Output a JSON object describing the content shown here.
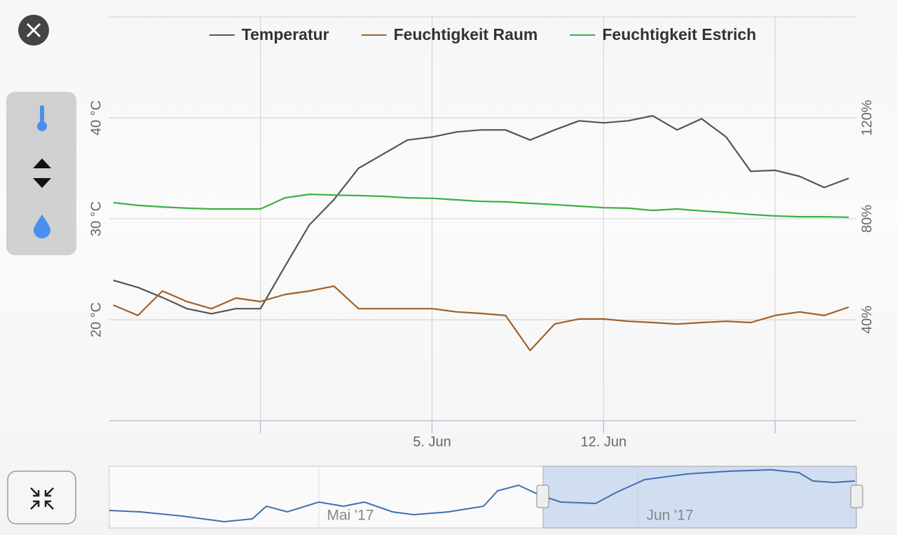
{
  "chart_data": {
    "type": "line",
    "x": [
      "2017-05-23",
      "2017-05-24",
      "2017-05-25",
      "2017-05-26",
      "2017-05-27",
      "2017-05-28",
      "2017-05-29",
      "2017-05-30",
      "2017-05-31",
      "2017-06-01",
      "2017-06-02",
      "2017-06-03",
      "2017-06-04",
      "2017-06-05",
      "2017-06-06",
      "2017-06-07",
      "2017-06-08",
      "2017-06-09",
      "2017-06-10",
      "2017-06-11",
      "2017-06-12",
      "2017-06-13",
      "2017-06-14",
      "2017-06-15",
      "2017-06-16",
      "2017-06-17",
      "2017-06-18",
      "2017-06-19",
      "2017-06-20",
      "2017-06-21",
      "2017-06-22"
    ],
    "xlim": [
      "2017-05-22T20:00",
      "2017-06-22T07:30"
    ],
    "xticks": [
      {
        "value": "2017-05-29",
        "label": null
      },
      {
        "value": "2017-06-05",
        "label": "5. Jun"
      },
      {
        "value": "2017-06-12",
        "label": "12. Jun"
      },
      {
        "value": "2017-06-19",
        "label": null
      }
    ],
    "ylim": [
      10,
      50
    ],
    "yticks": [
      {
        "value": 20,
        "label": "20 °C"
      },
      {
        "value": 30,
        "label": "30 °C"
      },
      {
        "value": 40,
        "label": "40 °C"
      }
    ],
    "y2lim": [
      0,
      160
    ],
    "y2ticks": [
      {
        "value": 40,
        "label": "40%"
      },
      {
        "value": 80,
        "label": "80%"
      },
      {
        "value": 120,
        "label": "120%"
      }
    ],
    "grid": true,
    "legend": "top",
    "series": [
      {
        "name": "Temperatur",
        "color": "#555555",
        "values": [
          23.9,
          23.2,
          22.2,
          21.1,
          20.6,
          21.1,
          21.1,
          25.3,
          29.4,
          31.9,
          35.0,
          36.4,
          37.8,
          38.1,
          38.6,
          38.8,
          38.8,
          37.8,
          38.8,
          39.7,
          39.5,
          39.7,
          40.2,
          38.8,
          39.9,
          38.1,
          34.7,
          34.8,
          34.2,
          33.1,
          34.0
        ]
      },
      {
        "name": "Feuchtigkeit Raum",
        "color": "#a0612a",
        "axis": "y2",
        "values": [
          45.8,
          41.7,
          51.4,
          47.2,
          44.4,
          48.6,
          47.2,
          50.0,
          51.4,
          53.3,
          44.4,
          44.4,
          44.4,
          44.4,
          43.1,
          42.5,
          41.7,
          27.8,
          38.3,
          40.3,
          40.3,
          39.4,
          38.9,
          38.3,
          38.9,
          39.4,
          38.9,
          41.7,
          43.1,
          41.7,
          45.0
        ]
      },
      {
        "name": "Feuchtigkeit Estrich",
        "color": "#3cb043",
        "axis": "y2",
        "values": [
          86.4,
          85.3,
          84.7,
          84.2,
          83.9,
          83.9,
          83.9,
          88.3,
          89.7,
          89.4,
          89.2,
          88.9,
          88.3,
          88.1,
          87.5,
          86.9,
          86.7,
          86.1,
          85.6,
          85.0,
          84.4,
          84.2,
          83.3,
          83.9,
          83.1,
          82.5,
          81.7,
          81.1,
          80.8,
          80.8,
          80.6
        ]
      }
    ]
  },
  "navigator": {
    "labels": [
      "Mai '17",
      "Jun '17"
    ]
  }
}
